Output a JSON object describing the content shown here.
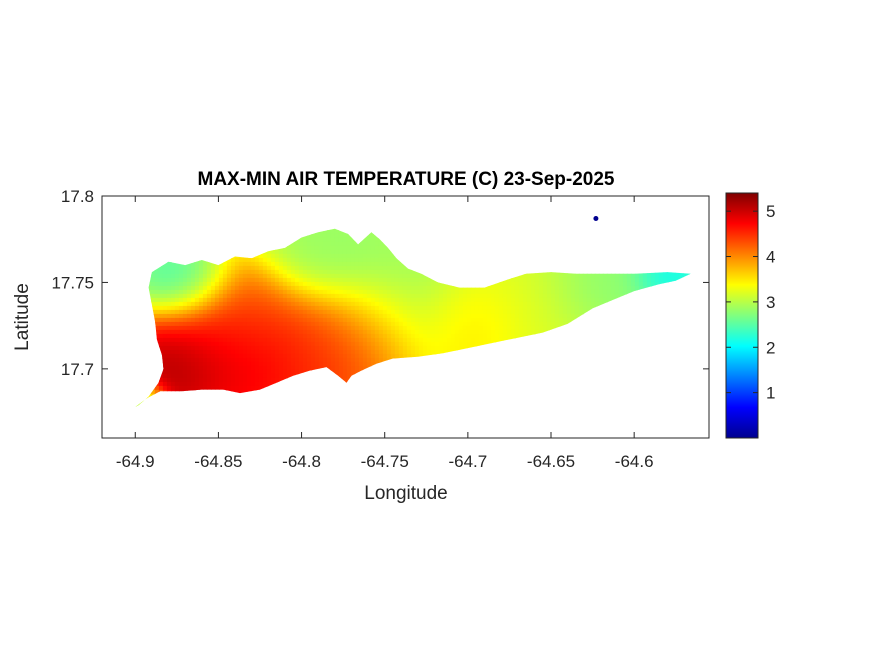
{
  "chart_data": {
    "type": "heatmap",
    "title": "MAX-MIN AIR TEMPERATURE (C) 23-Sep-2025",
    "xlabel": "Longitude",
    "ylabel": "Latitude",
    "xlim": [
      -64.92,
      -64.555
    ],
    "ylim": [
      17.66,
      17.8
    ],
    "xticks": [
      -64.9,
      -64.85,
      -64.8,
      -64.75,
      -64.7,
      -64.65,
      -64.6
    ],
    "xtick_labels": [
      "-64.9",
      "-64.85",
      "-64.8",
      "-64.75",
      "-64.7",
      "-64.65",
      "-64.6"
    ],
    "yticks": [
      17.7,
      17.75,
      17.8
    ],
    "ytick_labels": [
      "17.7",
      "17.75",
      "17.8"
    ],
    "colormap": "jet",
    "clim": [
      0,
      5.4
    ],
    "colorbar_ticks": [
      1,
      2,
      3,
      4,
      5
    ],
    "colorbar_tick_labels": [
      "1",
      "2",
      "3",
      "4",
      "5"
    ],
    "grid": false,
    "island_outline": [
      [
        -64.898,
        17.679
      ],
      [
        -64.892,
        17.684
      ],
      [
        -64.886,
        17.692
      ],
      [
        -64.883,
        17.7
      ],
      [
        -64.884,
        17.708
      ],
      [
        -64.887,
        17.717
      ],
      [
        -64.888,
        17.727
      ],
      [
        -64.89,
        17.737
      ],
      [
        -64.892,
        17.747
      ],
      [
        -64.89,
        17.756
      ],
      [
        -64.88,
        17.762
      ],
      [
        -64.87,
        17.76
      ],
      [
        -64.86,
        17.763
      ],
      [
        -64.85,
        17.76
      ],
      [
        -64.84,
        17.765
      ],
      [
        -64.83,
        17.764
      ],
      [
        -64.82,
        17.768
      ],
      [
        -64.81,
        17.77
      ],
      [
        -64.8,
        17.776
      ],
      [
        -64.79,
        17.779
      ],
      [
        -64.78,
        17.781
      ],
      [
        -64.772,
        17.778
      ],
      [
        -64.766,
        17.772
      ],
      [
        -64.758,
        17.779
      ],
      [
        -64.753,
        17.775
      ],
      [
        -64.748,
        17.77
      ],
      [
        -64.743,
        17.764
      ],
      [
        -64.736,
        17.758
      ],
      [
        -64.728,
        17.755
      ],
      [
        -64.718,
        17.75
      ],
      [
        -64.705,
        17.747
      ],
      [
        -64.69,
        17.747
      ],
      [
        -64.675,
        17.752
      ],
      [
        -64.665,
        17.755
      ],
      [
        -64.65,
        17.756
      ],
      [
        -64.635,
        17.755
      ],
      [
        -64.62,
        17.755
      ],
      [
        -64.6,
        17.755
      ],
      [
        -64.58,
        17.756
      ],
      [
        -64.566,
        17.755
      ],
      [
        -64.575,
        17.751
      ],
      [
        -64.585,
        17.749
      ],
      [
        -64.6,
        17.745
      ],
      [
        -64.61,
        17.741
      ],
      [
        -64.625,
        17.735
      ],
      [
        -64.64,
        17.726
      ],
      [
        -64.655,
        17.721
      ],
      [
        -64.67,
        17.718
      ],
      [
        -64.685,
        17.715
      ],
      [
        -64.7,
        17.712
      ],
      [
        -64.715,
        17.709
      ],
      [
        -64.73,
        17.707
      ],
      [
        -64.745,
        17.706
      ],
      [
        -64.755,
        17.703
      ],
      [
        -64.764,
        17.699
      ],
      [
        -64.77,
        17.696
      ],
      [
        -64.773,
        17.692
      ],
      [
        -64.778,
        17.696
      ],
      [
        -64.785,
        17.701
      ],
      [
        -64.795,
        17.699
      ],
      [
        -64.805,
        17.696
      ],
      [
        -64.815,
        17.692
      ],
      [
        -64.825,
        17.688
      ],
      [
        -64.837,
        17.686
      ],
      [
        -64.847,
        17.688
      ],
      [
        -64.86,
        17.688
      ],
      [
        -64.872,
        17.687
      ],
      [
        -64.885,
        17.687
      ],
      [
        -64.893,
        17.683
      ],
      [
        -64.9,
        17.678
      ]
    ],
    "small_islet": [
      -64.623,
      17.787
    ],
    "value_field": [
      {
        "lon": -64.875,
        "lat": 17.7,
        "value": 5.4,
        "spread": 0.018
      },
      {
        "lon": -64.855,
        "lat": 17.712,
        "value": 5.0,
        "spread": 0.022
      },
      {
        "lon": -64.83,
        "lat": 17.7,
        "value": 5.0,
        "spread": 0.022
      },
      {
        "lon": -64.8,
        "lat": 17.708,
        "value": 4.6,
        "spread": 0.025
      },
      {
        "lon": -64.78,
        "lat": 17.71,
        "value": 4.6,
        "spread": 0.02
      },
      {
        "lon": -64.76,
        "lat": 17.72,
        "value": 4.0,
        "spread": 0.022
      },
      {
        "lon": -64.84,
        "lat": 17.728,
        "value": 4.3,
        "spread": 0.022
      },
      {
        "lon": -64.87,
        "lat": 17.748,
        "value": 2.2,
        "spread": 0.015
      },
      {
        "lon": -64.78,
        "lat": 17.765,
        "value": 2.8,
        "spread": 0.022
      },
      {
        "lon": -64.74,
        "lat": 17.74,
        "value": 2.8,
        "spread": 0.025
      },
      {
        "lon": -64.7,
        "lat": 17.725,
        "value": 3.6,
        "spread": 0.02
      },
      {
        "lon": -64.66,
        "lat": 17.735,
        "value": 3.2,
        "spread": 0.025
      },
      {
        "lon": -64.62,
        "lat": 17.748,
        "value": 2.7,
        "spread": 0.02
      },
      {
        "lon": -64.58,
        "lat": 17.754,
        "value": 2.0,
        "spread": 0.012
      },
      {
        "lon": -64.895,
        "lat": 17.682,
        "value": 2.5,
        "spread": 0.008
      }
    ],
    "value_field_background": 3.1
  }
}
